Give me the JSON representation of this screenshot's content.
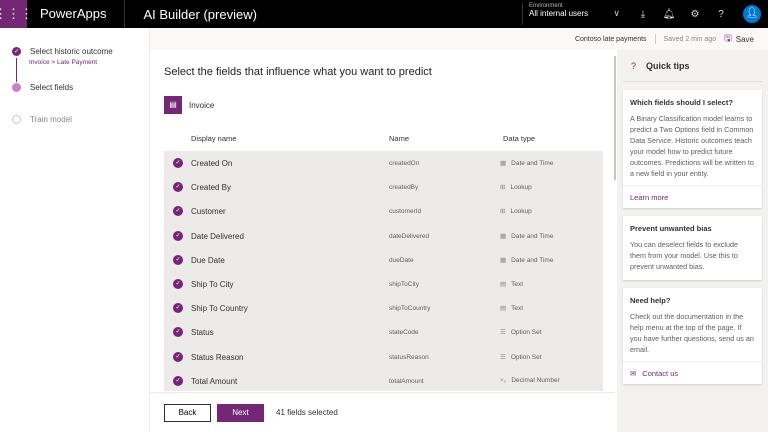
{
  "topbar": {
    "brand": "PowerApps",
    "app": "AI Builder (preview)",
    "env_label": "Environment",
    "env_value": "All internal users"
  },
  "steps": [
    {
      "label": "Select historic outcome",
      "sub": "Invoice > Late Payment"
    },
    {
      "label": "Select fields"
    },
    {
      "label": "Train model"
    }
  ],
  "subbar": {
    "model": "Contoso late payments",
    "saved": "Saved 2 min ago",
    "save": "Save"
  },
  "main": {
    "title": "Select the fields that influence what you want to predict",
    "entity": "Invoice",
    "columns": [
      "Display name",
      "Name",
      "Data type"
    ],
    "rows": [
      {
        "display": "Created On",
        "name": "createdOn",
        "type": "Date and Time",
        "icon": "calendar"
      },
      {
        "display": "Created By",
        "name": "createdBy",
        "type": "Lookup",
        "icon": "lookup"
      },
      {
        "display": "Customer",
        "name": "customerId",
        "type": "Lookup",
        "icon": "lookup"
      },
      {
        "display": "Date Delivered",
        "name": "dateDelivered",
        "type": "Date and Time",
        "icon": "calendar"
      },
      {
        "display": "Due Date",
        "name": "dueDate",
        "type": "Date and Time",
        "icon": "calendar"
      },
      {
        "display": "Ship To City",
        "name": "shipToCity",
        "type": "Text",
        "icon": "text"
      },
      {
        "display": "Ship To Country",
        "name": "shipToCountry",
        "type": "Text",
        "icon": "text"
      },
      {
        "display": "Status",
        "name": "stateCode",
        "type": "Option Set",
        "icon": "list"
      },
      {
        "display": "Status Reason",
        "name": "statusReason",
        "type": "Option Set",
        "icon": "list"
      },
      {
        "display": "Total Amount",
        "name": "totalAmount",
        "type": "Decimal Number",
        "icon": "decimal"
      }
    ]
  },
  "footer": {
    "back": "Back",
    "next": "Next",
    "count": "41 fields selected"
  },
  "tips": {
    "title": "Quick tips",
    "cards": [
      {
        "title": "Which fields should I select?",
        "body": "A Binary Classification model learns to predict a Two Options field in Common Data Service. Historic outcomes teach your model how to predict future outcomes. Predictions will be written to a new field in your entity.",
        "link": "Learn more"
      },
      {
        "title": "Prevent unwanted bias",
        "body": "You can deselect fields to exclude them from your model. Use this to prevent unwanted bias."
      },
      {
        "title": "Need help?",
        "body": "Check out the documentation in the help menu at the top of the page. If you have further questions, send us an email.",
        "link": "Contact us"
      }
    ]
  },
  "colors": {
    "accent": "#742774",
    "topbar": "#000000",
    "avatar": "#0078d4"
  }
}
